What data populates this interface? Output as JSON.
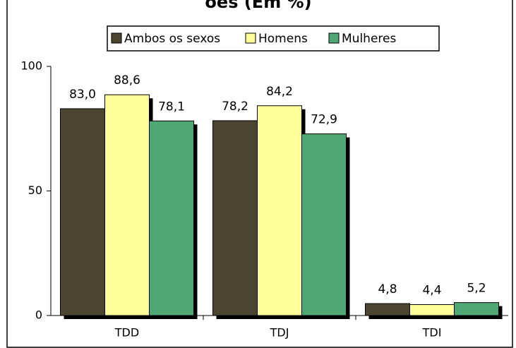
{
  "chart_data": {
    "type": "bar",
    "title": "oes (Em %)",
    "categories": [
      "TDD",
      "TDJ",
      "TDI"
    ],
    "series": [
      {
        "name": "Ambos os sexos",
        "color": "#4b4431",
        "values": [
          83.0,
          78.2,
          4.8
        ],
        "value_labels": [
          "83,0",
          "78,2",
          "4,8"
        ]
      },
      {
        "name": "Homens",
        "color": "#ffff99",
        "values": [
          88.6,
          84.2,
          4.4
        ],
        "value_labels": [
          "88,6",
          "84,2",
          "4,4"
        ]
      },
      {
        "name": "Mulheres",
        "color": "#4fa873",
        "values": [
          78.1,
          72.9,
          5.2
        ],
        "value_labels": [
          "78,1",
          "72,9",
          "5,2"
        ]
      }
    ],
    "ylim": [
      0,
      100
    ],
    "yticks": [
      0,
      50,
      100
    ],
    "legend": "top"
  }
}
